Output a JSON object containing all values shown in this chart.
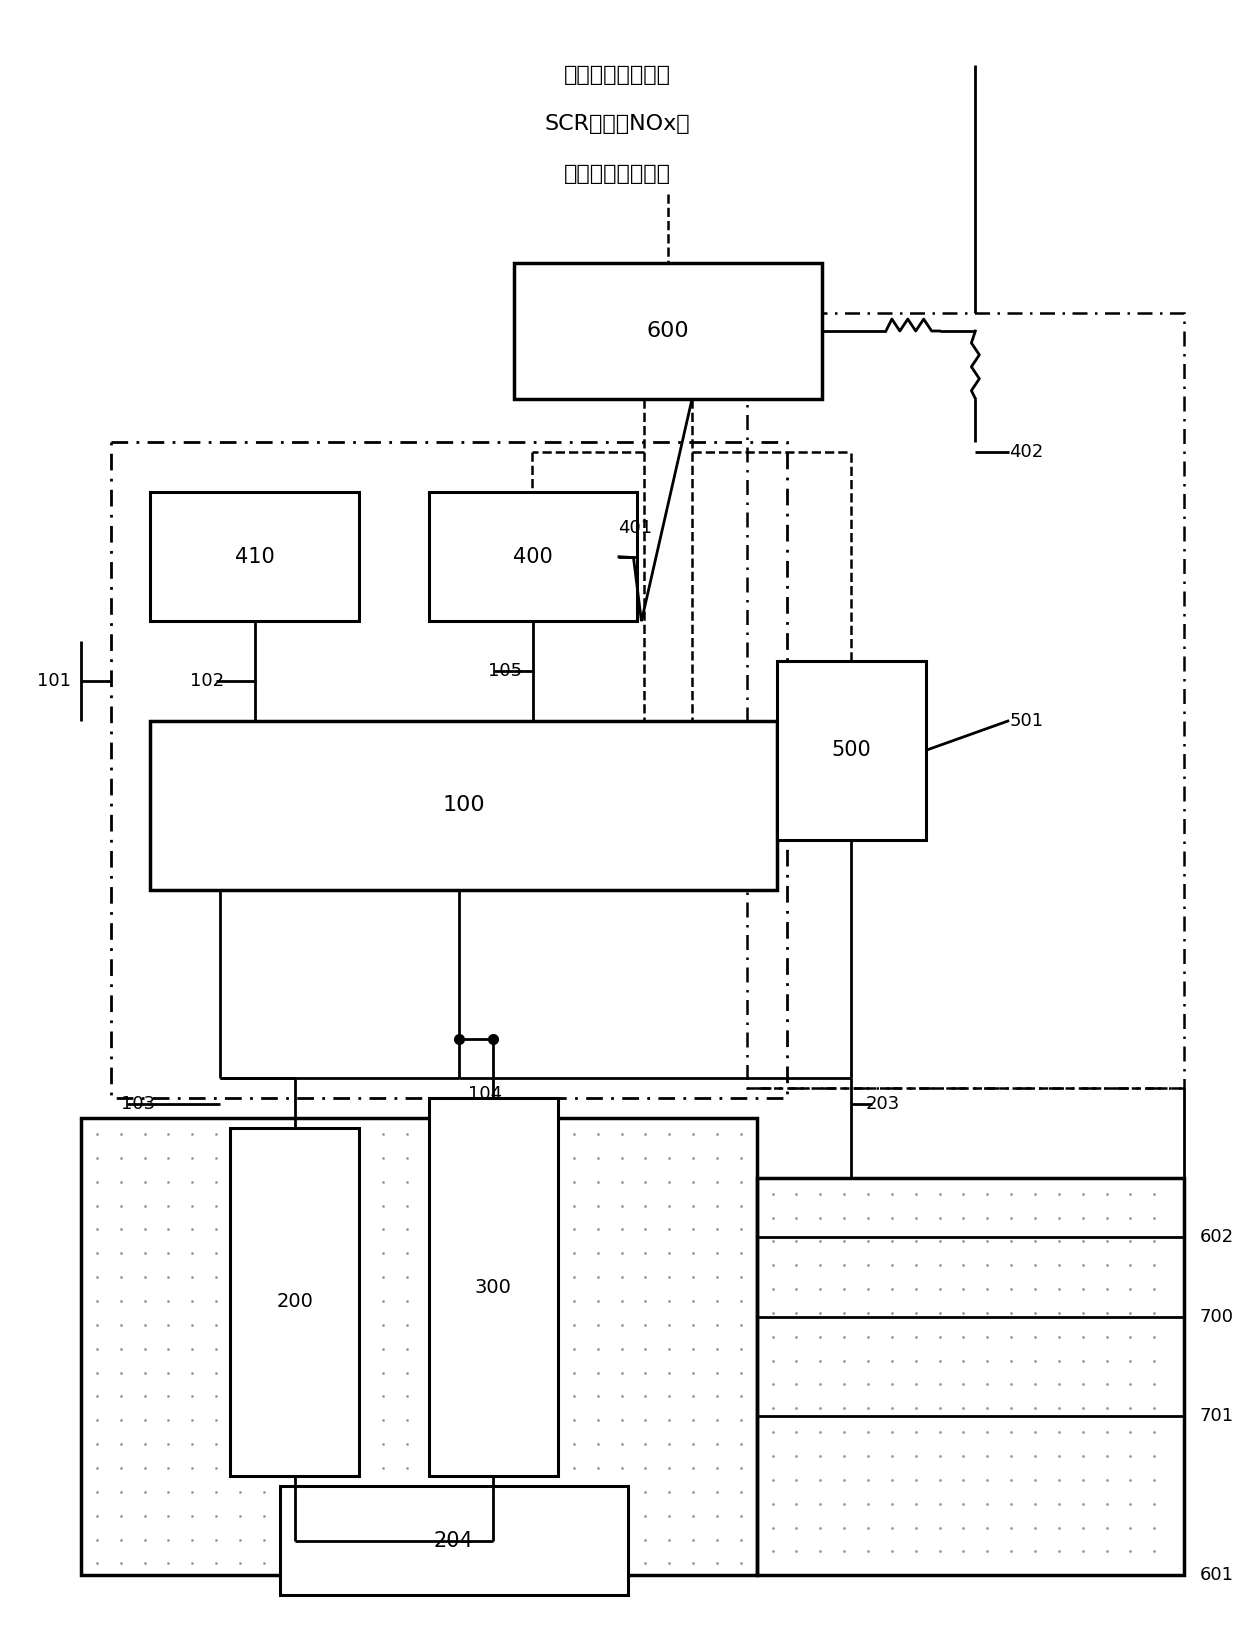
{
  "bg_color": "#ffffff",
  "box_color": "#000000",
  "title1": "接发动机、整车、",
  "title2": "SCR温度、NOx传",
  "title3": "感器、冷却液阀等",
  "lw_heavy": 2.5,
  "lw_med": 2.0,
  "lw_light": 1.5
}
